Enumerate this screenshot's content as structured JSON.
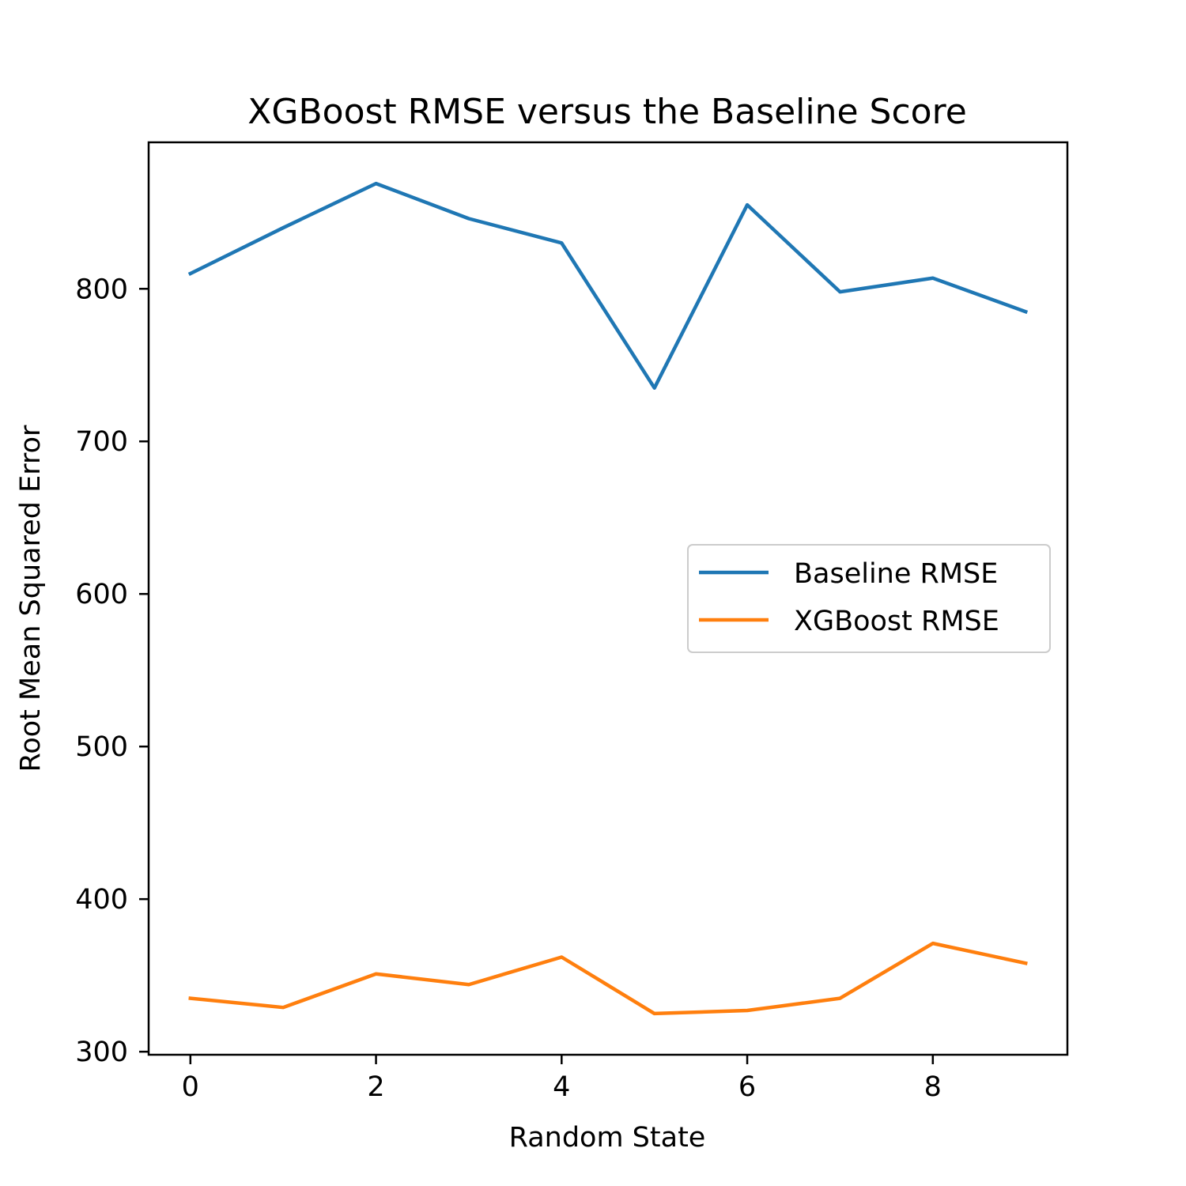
{
  "chart_data": {
    "type": "line",
    "title": "XGBoost RMSE versus the Baseline Score",
    "xlabel": "Random State",
    "ylabel": "Root Mean Squared Error",
    "x": [
      0,
      1,
      2,
      3,
      4,
      5,
      6,
      7,
      8,
      9
    ],
    "series": [
      {
        "name": "Baseline RMSE",
        "color": "#1f77b4",
        "values": [
          810,
          840,
          869,
          846,
          830,
          735,
          855,
          798,
          807,
          785
        ]
      },
      {
        "name": "XGBoost RMSE",
        "color": "#ff7f0e",
        "values": [
          335,
          329,
          351,
          344,
          362,
          325,
          327,
          335,
          371,
          358
        ]
      }
    ],
    "xlim": [
      -0.45,
      9.45
    ],
    "ylim": [
      298,
      896
    ],
    "xticks": [
      0,
      2,
      4,
      6,
      8
    ],
    "yticks": [
      300,
      400,
      500,
      600,
      700,
      800
    ],
    "grid": false,
    "legend_position": "center-right"
  }
}
